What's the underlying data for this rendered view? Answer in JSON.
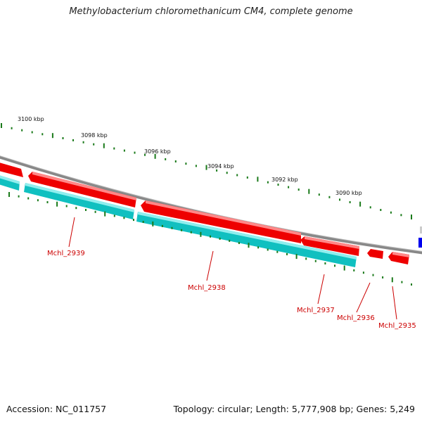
{
  "title": "Methylobacterium chloromethanicum CM4, complete genome",
  "footer": {
    "accession": "Accession: NC_011757",
    "summary": "Topology: circular; Length: 5,777,908 bp; Genes: 5,249"
  },
  "scale_labels": [
    "3100 kbp",
    "3098 kbp",
    "3096 kbp",
    "3094 kbp",
    "3092 kbp",
    "3090 kbp"
  ],
  "genes": [
    {
      "name": "Mchl_2939"
    },
    {
      "name": "Mchl_2938"
    },
    {
      "name": "Mchl_2937"
    },
    {
      "name": "Mchl_2936"
    },
    {
      "name": "Mchl_2935"
    }
  ],
  "colors": {
    "cds": "#ee0000",
    "cds_highlight": "#ff7777",
    "gene": "#10c0c0",
    "gene_highlight": "#90eeee",
    "backbone": "#888888",
    "ticks": "#1a7a1a",
    "label": "#cc0000",
    "marker": "#0000ee"
  }
}
